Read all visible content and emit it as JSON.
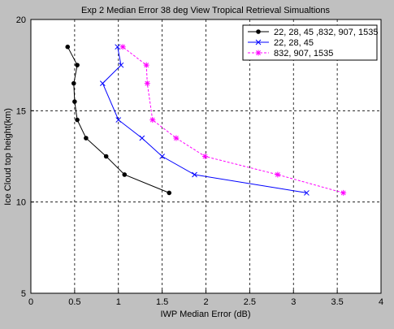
{
  "figure": {
    "background": "#c0c0c0"
  },
  "chart_data": {
    "type": "line",
    "title": "Exp 2 Median Error 38 deg View Tropical Retrieval Simualtions",
    "xlabel": "IWP Median Error (dB)",
    "ylabel": "Ice Cloud top height(km)",
    "xlim": [
      0,
      4
    ],
    "ylim": [
      5,
      20
    ],
    "x_ticks": [
      "0",
      "0.5",
      "1",
      "1.5",
      "2",
      "2.5",
      "3",
      "3.5",
      "4"
    ],
    "y_ticks": [
      "5",
      "10",
      "15",
      "20"
    ],
    "grid": true,
    "legend_position": "top-right",
    "series": [
      {
        "name": "22, 28, 45 ,832, 907, 1535",
        "color": "#000000",
        "marker": "dot",
        "line_style": "solid",
        "x": [
          1.58,
          1.07,
          0.86,
          0.63,
          0.53,
          0.5,
          0.49,
          0.53,
          0.42
        ],
        "y": [
          10.5,
          11.5,
          12.5,
          13.5,
          14.5,
          15.5,
          16.5,
          17.5,
          18.5
        ]
      },
      {
        "name": "22, 28, 45",
        "color": "#0000ff",
        "marker": "x",
        "line_style": "solid",
        "x": [
          3.15,
          1.87,
          1.5,
          1.27,
          1.0,
          0.82,
          1.03,
          0.99
        ],
        "y": [
          10.5,
          11.5,
          12.5,
          13.5,
          14.5,
          16.5,
          17.5,
          18.5
        ]
      },
      {
        "name": "832, 907, 1535",
        "color": "#ff00ff",
        "marker": "star",
        "line_style": "dashed",
        "x": [
          3.57,
          2.82,
          1.99,
          1.66,
          1.39,
          1.33,
          1.32,
          1.05
        ],
        "y": [
          10.5,
          11.5,
          12.5,
          13.5,
          14.5,
          16.5,
          17.5,
          18.5
        ]
      }
    ]
  }
}
